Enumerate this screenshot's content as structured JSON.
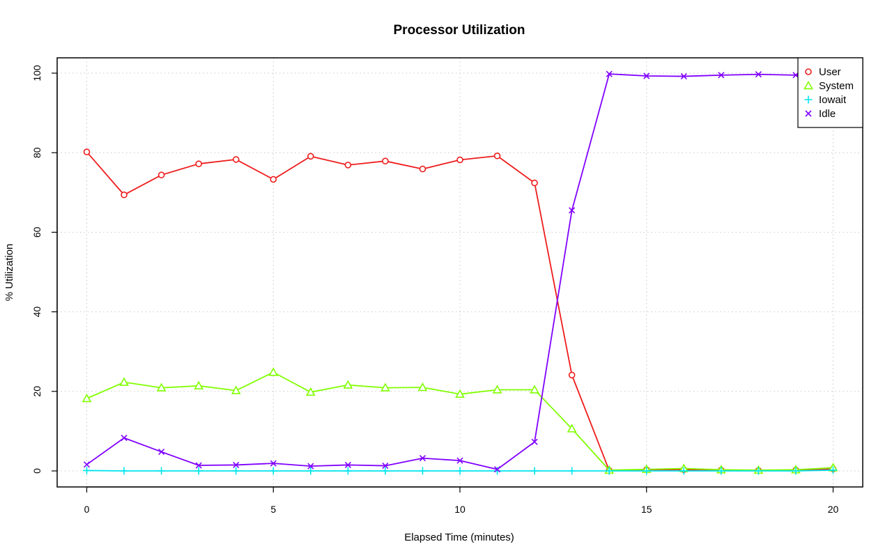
{
  "chart_data": {
    "type": "line",
    "title": "Processor Utilization",
    "xlabel": "Elapsed Time (minutes)",
    "ylabel": "% Utilization",
    "xlim": [
      0,
      20
    ],
    "ylim": [
      0,
      100
    ],
    "x_ticks": [
      "0",
      "5",
      "10",
      "15",
      "20"
    ],
    "y_ticks": [
      "0",
      "20",
      "40",
      "60",
      "80",
      "100"
    ],
    "grid": true,
    "legend_position": "top-right",
    "x": [
      0,
      1,
      2,
      3,
      4,
      5,
      6,
      7,
      8,
      9,
      10,
      11,
      12,
      13,
      14,
      15,
      16,
      17,
      18,
      19,
      20
    ],
    "series": [
      {
        "name": "User",
        "color": "#ee1c1c",
        "marker": "circle",
        "values": [
          80.2,
          69.4,
          74.4,
          77.2,
          78.3,
          73.3,
          79.1,
          76.9,
          77.9,
          75.9,
          78.2,
          79.2,
          72.4,
          24.1,
          0.1,
          0.3,
          0.3,
          0.2,
          0.1,
          0.2,
          0.5
        ]
      },
      {
        "name": "System",
        "color": "#80ff00",
        "marker": "triangle",
        "values": [
          18.2,
          22.3,
          20.9,
          21.4,
          20.2,
          24.8,
          19.8,
          21.6,
          20.9,
          21.0,
          19.3,
          20.4,
          20.4,
          10.6,
          0.2,
          0.4,
          0.6,
          0.3,
          0.2,
          0.3,
          0.8
        ]
      },
      {
        "name": "Iowait",
        "color": "#00e5ee",
        "marker": "plus",
        "values": [
          0.1,
          0.0,
          0.0,
          0.0,
          0.0,
          0.0,
          0.0,
          0.0,
          0.0,
          0.0,
          0.0,
          0.0,
          0.0,
          0.0,
          0.0,
          0.0,
          0.0,
          0.0,
          0.0,
          0.0,
          0.2
        ]
      },
      {
        "name": "Idle",
        "color": "#8000ff",
        "marker": "x",
        "values": [
          1.6,
          8.3,
          4.8,
          1.4,
          1.5,
          1.9,
          1.2,
          1.5,
          1.3,
          3.2,
          2.6,
          0.4,
          7.3,
          65.5,
          99.8,
          99.3,
          99.2,
          99.5,
          99.7,
          99.5,
          98.6
        ]
      }
    ]
  }
}
